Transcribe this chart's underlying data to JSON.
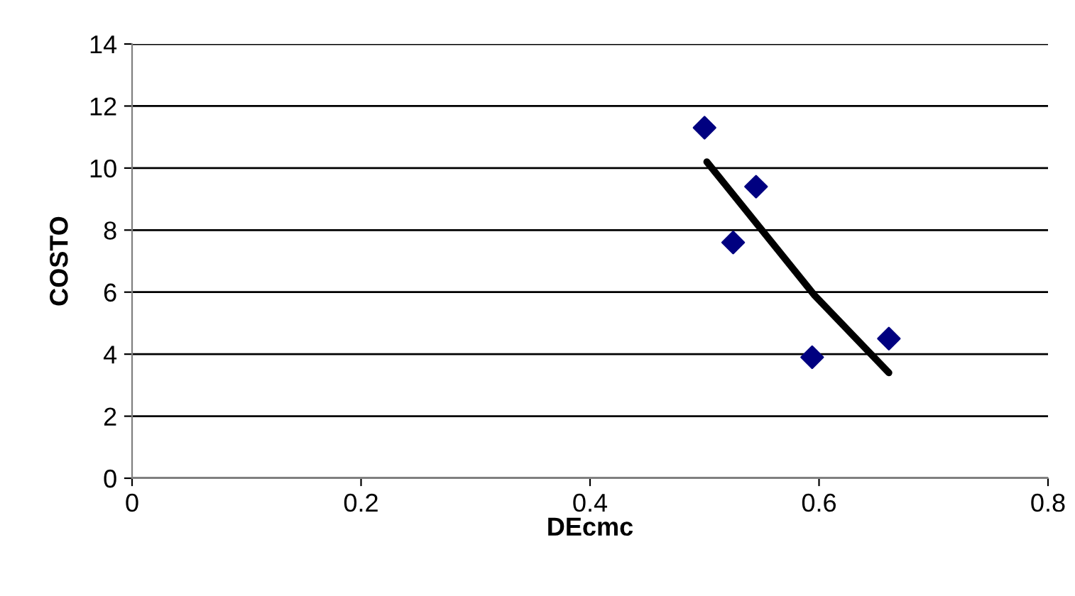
{
  "chart_data": {
    "type": "scatter",
    "xlabel": "DEcmc",
    "ylabel": "COSTO",
    "series": [
      {
        "color": "#000080",
        "marker": "diamond",
        "x": [
          0.5,
          0.545,
          0.525,
          0.594,
          0.661
        ],
        "values": [
          11.3,
          9.4,
          7.6,
          3.9,
          4.5
        ]
      },
      {
        "type": "line",
        "color": "#000000",
        "marker": "none",
        "x": [
          0.502,
          0.596,
          0.661
        ],
        "values": [
          10.2,
          5.9,
          3.4
        ]
      }
    ],
    "xlim": [
      0,
      0.8
    ],
    "xticks": [
      0,
      0.2,
      0.4,
      0.6,
      0.8
    ],
    "ylim": [
      0,
      14
    ],
    "yticks": [
      0,
      2,
      4,
      6,
      8,
      10,
      12,
      14
    ],
    "grid": "y",
    "legend": false
  }
}
